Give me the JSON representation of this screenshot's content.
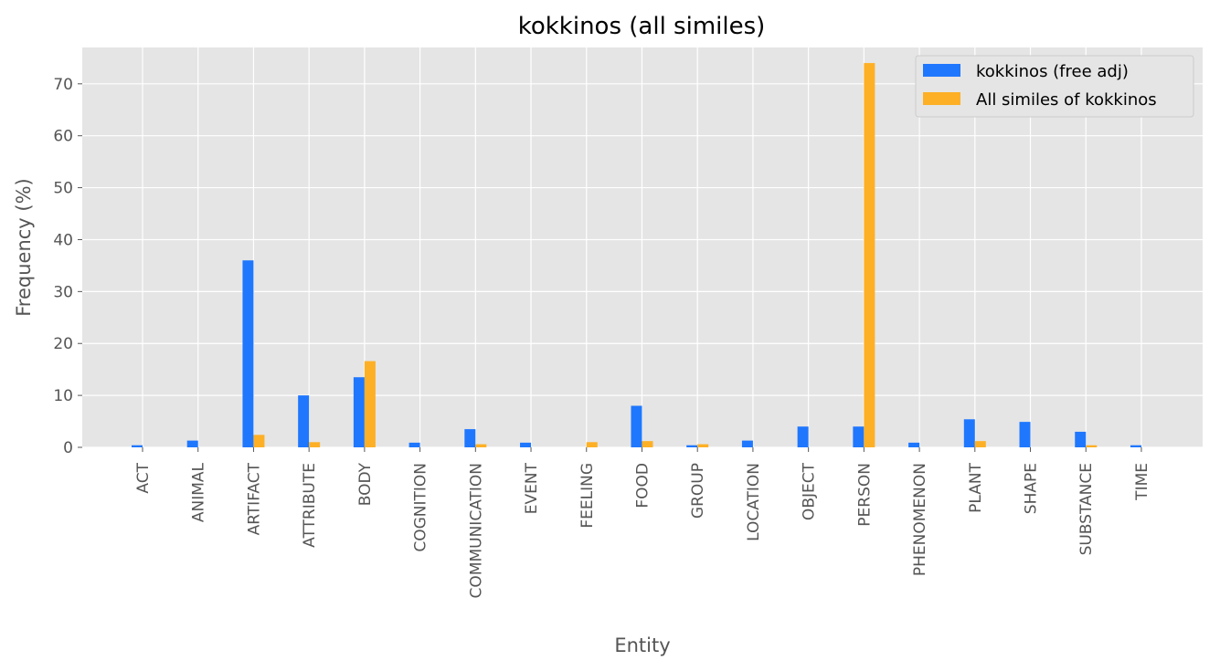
{
  "chart_data": {
    "type": "bar",
    "title": "kokkinos (all similes)",
    "xlabel": "Entity",
    "ylabel": "Frequency (%)",
    "ylim": [
      0,
      77
    ],
    "yticks": [
      0,
      10,
      20,
      30,
      40,
      50,
      60,
      70
    ],
    "grid": true,
    "legend_position": "top-right",
    "categories": [
      "ACT",
      "ANIMAL",
      "ARTIFACT",
      "ATTRIBUTE",
      "BODY",
      "COGNITION",
      "COMMUNICATION",
      "EVENT",
      "FEELING",
      "FOOD",
      "GROUP",
      "LOCATION",
      "OBJECT",
      "PERSON",
      "PHENOMENON",
      "PLANT",
      "SHAPE",
      "SUBSTANCE",
      "TIME"
    ],
    "series": [
      {
        "name": "kokkinos (free adj)",
        "color": "#1f77fe",
        "values": [
          0.4,
          1.3,
          36.0,
          10.0,
          13.5,
          0.9,
          3.5,
          0.9,
          0.0,
          8.0,
          0.4,
          1.3,
          4.0,
          4.0,
          0.9,
          5.4,
          4.9,
          3.0,
          0.4
        ]
      },
      {
        "name": "All similes of kokkinos",
        "color": "#fdb025",
        "values": [
          0.0,
          0.0,
          2.4,
          1.0,
          16.6,
          0.0,
          0.6,
          0.0,
          1.0,
          1.2,
          0.6,
          0.0,
          0.0,
          74.0,
          0.0,
          1.2,
          0.0,
          0.4,
          0.0
        ]
      }
    ]
  }
}
